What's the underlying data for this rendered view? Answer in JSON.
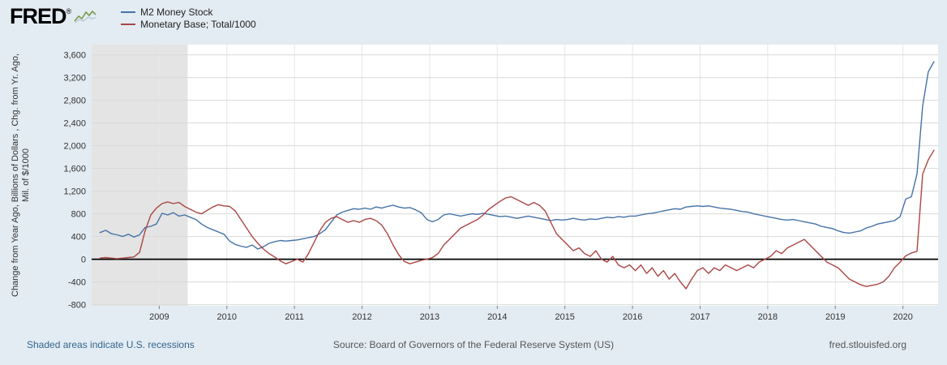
{
  "brand": {
    "logo_text": "FRED",
    "registered_mark": "®"
  },
  "legend": {
    "items": [
      {
        "label": "M2 Money Stock",
        "color": "#4572a7"
      },
      {
        "label": "Monetary Base; Total/1000",
        "color": "#aa4643"
      }
    ]
  },
  "chart_data": {
    "type": "line",
    "title": "",
    "ylabel_lines": [
      "Change from Year Ago, Billions of Dollars , Chg. from Yr. Ago,",
      "Mil. of $/1000"
    ],
    "xlim": [
      2008.0,
      2020.52
    ],
    "ylim": [
      -820,
      3780
    ],
    "x_ticks": [
      2009,
      2010,
      2011,
      2012,
      2013,
      2014,
      2015,
      2016,
      2017,
      2018,
      2019,
      2020
    ],
    "y_ticks": [
      {
        "value": -800,
        "label": "-800"
      },
      {
        "value": -400,
        "label": "-400"
      },
      {
        "value": 0,
        "label": "0"
      },
      {
        "value": 400,
        "label": "400"
      },
      {
        "value": 800,
        "label": "800"
      },
      {
        "value": 1200,
        "label": "1,200"
      },
      {
        "value": 1600,
        "label": "1,600"
      },
      {
        "value": 2000,
        "label": "2,000"
      },
      {
        "value": 2400,
        "label": "2,400"
      },
      {
        "value": 2800,
        "label": "2,800"
      },
      {
        "value": 3200,
        "label": "3,200"
      },
      {
        "value": 3600,
        "label": "3,600"
      }
    ],
    "recession_bands": [
      [
        2008.0,
        2009.42
      ]
    ],
    "zero_line_value": 0,
    "colors": {
      "background": "#e3ecf3",
      "plot_background": "#ffffff",
      "recession_shading": "#e4e4e4",
      "horizontal_grid": "#d9d9d9",
      "vertical_grid": "#e6e6e6",
      "zero_line": "#000000",
      "axis_text": "#333333",
      "link": "#33658e"
    },
    "legend_position": "top-left",
    "grid": true,
    "series": [
      {
        "name": "M2 Money Stock",
        "color": "#4572a7",
        "frequency": "monthly",
        "start_year": 2008,
        "start_month": 2,
        "values": [
          470,
          510,
          450,
          430,
          400,
          440,
          390,
          430,
          560,
          580,
          620,
          810,
          780,
          820,
          760,
          780,
          740,
          700,
          620,
          560,
          520,
          480,
          440,
          320,
          260,
          230,
          210,
          250,
          180,
          220,
          280,
          310,
          330,
          320,
          330,
          340,
          360,
          380,
          400,
          450,
          520,
          650,
          780,
          830,
          860,
          890,
          880,
          900,
          880,
          920,
          900,
          930,
          950,
          920,
          900,
          910,
          870,
          820,
          700,
          660,
          700,
          780,
          800,
          780,
          760,
          780,
          800,
          790,
          810,
          790,
          770,
          750,
          760,
          740,
          720,
          740,
          760,
          740,
          720,
          700,
          680,
          700,
          690,
          700,
          720,
          700,
          690,
          710,
          700,
          720,
          740,
          730,
          750,
          740,
          760,
          760,
          780,
          800,
          810,
          830,
          850,
          870,
          890,
          880,
          920,
          930,
          940,
          930,
          940,
          920,
          900,
          890,
          880,
          860,
          840,
          830,
          800,
          780,
          760,
          740,
          720,
          700,
          690,
          700,
          680,
          660,
          640,
          620,
          580,
          560,
          540,
          500,
          470,
          460,
          480,
          500,
          550,
          580,
          620,
          640,
          660,
          680,
          750,
          1060,
          1100,
          1500,
          2700,
          3300,
          3480
        ]
      },
      {
        "name": "Monetary Base; Total/1000",
        "color": "#aa4643",
        "frequency": "monthly",
        "start_year": 2008,
        "start_month": 2,
        "values": [
          20,
          30,
          20,
          10,
          20,
          30,
          40,
          120,
          500,
          780,
          900,
          980,
          1010,
          980,
          1000,
          930,
          880,
          830,
          800,
          860,
          920,
          960,
          940,
          930,
          850,
          700,
          550,
          400,
          280,
          180,
          100,
          40,
          -30,
          -80,
          -40,
          0,
          -50,
          100,
          300,
          500,
          650,
          720,
          750,
          700,
          650,
          680,
          650,
          700,
          720,
          680,
          600,
          450,
          250,
          80,
          -40,
          -80,
          -50,
          -20,
          0,
          30,
          100,
          250,
          350,
          450,
          550,
          600,
          650,
          700,
          780,
          880,
          950,
          1020,
          1080,
          1100,
          1050,
          1000,
          950,
          1000,
          950,
          850,
          650,
          450,
          350,
          250,
          150,
          200,
          100,
          50,
          150,
          0,
          -50,
          50,
          -100,
          -150,
          -100,
          -200,
          -100,
          -250,
          -150,
          -300,
          -200,
          -350,
          -250,
          -400,
          -520,
          -350,
          -200,
          -150,
          -250,
          -150,
          -200,
          -100,
          -150,
          -200,
          -150,
          -100,
          -150,
          -50,
          0,
          50,
          150,
          100,
          200,
          250,
          300,
          350,
          250,
          150,
          50,
          -50,
          -100,
          -150,
          -250,
          -350,
          -400,
          -450,
          -480,
          -460,
          -440,
          -400,
          -300,
          -150,
          -50,
          60,
          110,
          140,
          1500,
          1750,
          1920
        ]
      }
    ]
  },
  "footer": {
    "recession_note": "Shaded areas indicate U.S. recessions",
    "source": "Source: Board of Governors of the Federal Reserve System (US)",
    "site": "fred.stlouisfed.org"
  }
}
